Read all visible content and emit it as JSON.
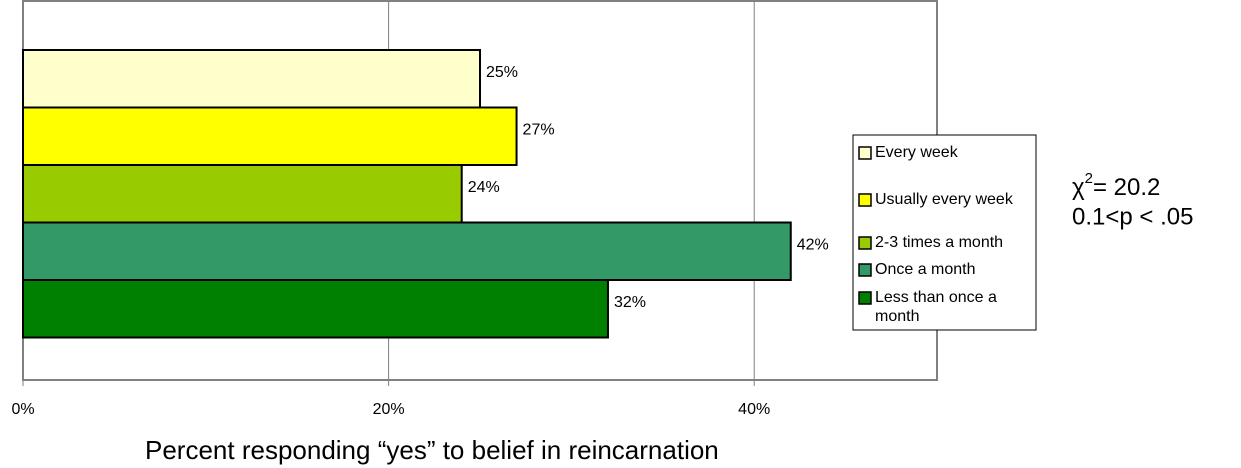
{
  "chart_data": {
    "type": "bar",
    "orientation": "horizontal",
    "xlabel": "Percent responding “yes” to belief in reincarnation",
    "series": [
      {
        "name": "Every week",
        "color": "#ffffcc",
        "values": [
          25
        ],
        "value_labels": [
          "25%"
        ]
      },
      {
        "name": "Usually every week",
        "color": "#ffff00",
        "values": [
          27
        ],
        "value_labels": [
          "27%"
        ]
      },
      {
        "name": "2-3 times a month",
        "color": "#99cc00",
        "values": [
          24
        ],
        "value_labels": [
          "24%"
        ]
      },
      {
        "name": "Once a month",
        "color": "#339966",
        "values": [
          42
        ],
        "value_labels": [
          "42%"
        ]
      },
      {
        "name": "Less than once a month",
        "color": "#008000",
        "values": [
          32
        ],
        "value_labels": [
          "32%"
        ]
      }
    ],
    "xlim": [
      0,
      50
    ],
    "xticks": [
      {
        "value": 0,
        "label": "0%"
      },
      {
        "value": 20,
        "label": "20%"
      },
      {
        "value": 40,
        "label": "40%"
      }
    ],
    "grid": true,
    "legend": "right",
    "annotation": {
      "symbol": "χ",
      "superscript": "2",
      "statistic": "= 20.2",
      "p_value": "0.1<p < .05"
    }
  }
}
